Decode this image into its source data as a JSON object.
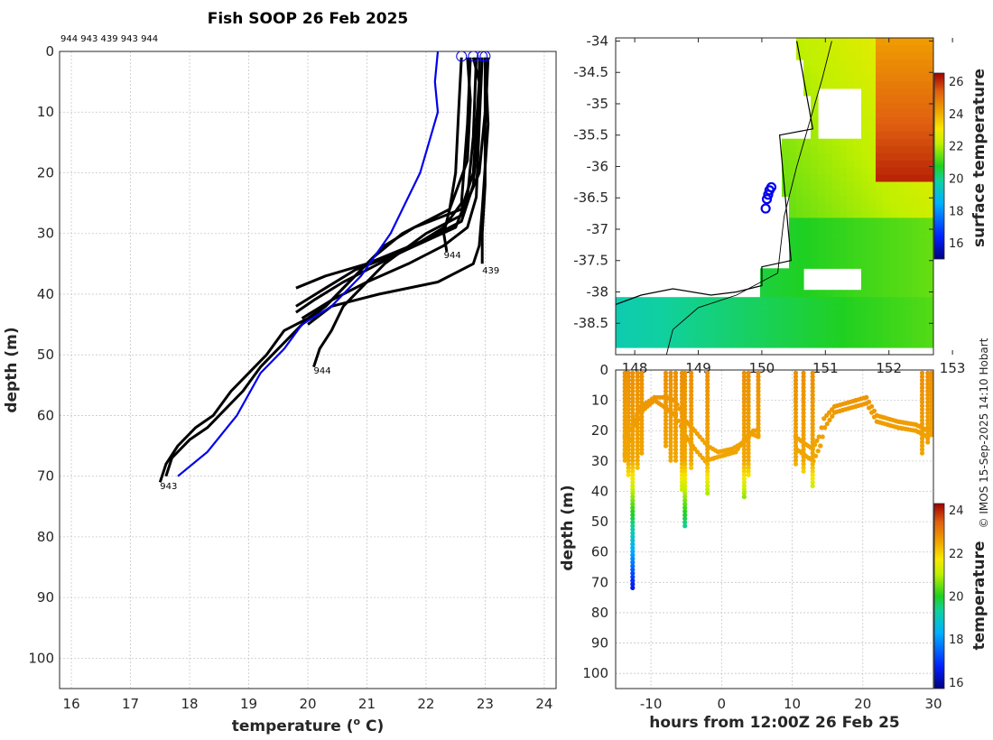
{
  "chart_data": [
    {
      "type": "line",
      "title": "Fish SOOP 26 Feb 2025",
      "profile_ids_header": "944 943 439 943 944",
      "xlabel": "temperature (",
      "xlabel_sup": "o",
      "xlabel_unit": " C)",
      "ylabel": "depth (m)",
      "xlim": [
        15.8,
        24.2
      ],
      "ylim": [
        105,
        0
      ],
      "xticks": [
        16,
        17,
        18,
        19,
        20,
        21,
        22,
        23,
        24
      ],
      "yticks": [
        0,
        10,
        20,
        30,
        40,
        50,
        60,
        70,
        80,
        90,
        100
      ],
      "grid": true,
      "reference_profile": {
        "color": "#0000ee",
        "points": [
          [
            22.2,
            0
          ],
          [
            22.15,
            5
          ],
          [
            22.2,
            10
          ],
          [
            21.9,
            20
          ],
          [
            21.4,
            30
          ],
          [
            20.9,
            37
          ],
          [
            20.4,
            42
          ],
          [
            19.9,
            45
          ],
          [
            19.6,
            49
          ],
          [
            19.2,
            53
          ],
          [
            18.8,
            60
          ],
          [
            18.3,
            66
          ],
          [
            17.8,
            70
          ]
        ]
      },
      "profiles": [
        {
          "label": "943",
          "label_at": [
            17.5,
            71.5
          ],
          "points": [
            [
              22.8,
              1
            ],
            [
              22.9,
              5
            ],
            [
              22.85,
              12
            ],
            [
              22.8,
              20
            ],
            [
              22.6,
              26
            ],
            [
              21.8,
              29
            ],
            [
              21.3,
              32
            ],
            [
              20.9,
              36
            ],
            [
              20.6,
              39
            ],
            [
              20.3,
              42
            ],
            [
              20.0,
              44
            ],
            [
              19.6,
              46
            ],
            [
              19.3,
              50
            ],
            [
              19.0,
              53
            ],
            [
              18.7,
              56
            ],
            [
              18.4,
              60
            ],
            [
              18.1,
              62
            ],
            [
              17.8,
              65
            ],
            [
              17.6,
              68
            ],
            [
              17.5,
              71
            ]
          ]
        },
        {
          "label": "",
          "label_at": null,
          "points": [
            [
              22.7,
              1
            ],
            [
              22.75,
              8
            ],
            [
              22.7,
              18
            ],
            [
              22.4,
              26
            ],
            [
              21.6,
              30
            ],
            [
              21.1,
              34
            ],
            [
              20.7,
              38
            ],
            [
              20.3,
              42
            ],
            [
              19.9,
              45
            ],
            [
              19.6,
              48
            ],
            [
              19.2,
              52
            ],
            [
              18.9,
              56
            ],
            [
              18.6,
              59
            ],
            [
              18.3,
              62
            ],
            [
              18.0,
              64
            ],
            [
              17.7,
              67
            ],
            [
              17.6,
              70
            ]
          ]
        },
        {
          "label": "944",
          "label_at": [
            20.1,
            52.5
          ],
          "points": [
            [
              23.0,
              1
            ],
            [
              23.0,
              10
            ],
            [
              22.9,
              20
            ],
            [
              22.6,
              27
            ],
            [
              22.0,
              30
            ],
            [
              21.3,
              35
            ],
            [
              20.9,
              39
            ],
            [
              20.6,
              42
            ],
            [
              20.4,
              46
            ],
            [
              20.2,
              49
            ],
            [
              20.1,
              52
            ]
          ]
        },
        {
          "label": "944",
          "label_at": [
            22.3,
            33.5
          ],
          "points": [
            [
              22.6,
              1
            ],
            [
              22.55,
              10
            ],
            [
              22.5,
              20
            ],
            [
              22.4,
              26
            ],
            [
              22.3,
              30
            ],
            [
              22.35,
              33
            ]
          ]
        },
        {
          "label": "439",
          "label_at": [
            22.95,
            36
          ],
          "points": [
            [
              23.05,
              1
            ],
            [
              23.0,
              12
            ],
            [
              23.0,
              22
            ],
            [
              22.95,
              30
            ],
            [
              22.95,
              35
            ]
          ]
        },
        {
          "label": "",
          "label_at": null,
          "points": [
            [
              22.9,
              1
            ],
            [
              22.9,
              10
            ],
            [
              22.8,
              22
            ],
            [
              22.6,
              28
            ],
            [
              22.0,
              31
            ],
            [
              21.0,
              35
            ],
            [
              20.3,
              37
            ],
            [
              19.8,
              39
            ]
          ]
        },
        {
          "label": "",
          "label_at": null,
          "points": [
            [
              22.85,
              1
            ],
            [
              22.8,
              14
            ],
            [
              22.7,
              24
            ],
            [
              22.5,
              29
            ],
            [
              21.6,
              33
            ],
            [
              20.8,
              36
            ],
            [
              20.3,
              39
            ],
            [
              19.8,
              42
            ]
          ]
        },
        {
          "label": "",
          "label_at": null,
          "points": [
            [
              22.95,
              1
            ],
            [
              22.9,
              12
            ],
            [
              22.85,
              24
            ],
            [
              22.7,
              29
            ],
            [
              22.3,
              32
            ],
            [
              21.7,
              35
            ],
            [
              21.0,
              38
            ],
            [
              20.4,
              41
            ],
            [
              19.9,
              44
            ]
          ]
        },
        {
          "label": "",
          "label_at": null,
          "points": [
            [
              22.75,
              1
            ],
            [
              22.7,
              12
            ],
            [
              22.6,
              25
            ],
            [
              22.3,
              29
            ],
            [
              21.8,
              32
            ],
            [
              21.2,
              35
            ],
            [
              20.6,
              38
            ],
            [
              20.1,
              41
            ],
            [
              19.8,
              43
            ]
          ]
        },
        {
          "label": "",
          "label_at": null,
          "points": [
            [
              23.0,
              1
            ],
            [
              23.05,
              12
            ],
            [
              22.95,
              26
            ],
            [
              22.9,
              32
            ],
            [
              22.8,
              35
            ],
            [
              22.2,
              38
            ],
            [
              21.2,
              40
            ],
            [
              20.4,
              42
            ],
            [
              20.0,
              45
            ]
          ]
        }
      ]
    },
    {
      "type": "heatmap",
      "xticks": [
        148,
        149,
        150,
        151,
        152,
        153
      ],
      "xtick_labels": [
        "148",
        "149",
        "150",
        "151",
        "152",
        "153"
      ],
      "yticks": [
        -34,
        -34.5,
        -35,
        -35.5,
        -36,
        -36.5,
        -37,
        -37.5,
        -38,
        -38.5
      ],
      "ytick_labels": [
        "-34",
        "-34.5",
        "-35",
        "-35.5",
        "-36",
        "-36.5",
        "-37",
        "-37.5",
        "-38",
        "-38.5"
      ],
      "xlim": [
        147.7,
        152.7
      ],
      "ylim": [
        -39.0,
        -33.95
      ],
      "colorbar": {
        "label": "surface temperature",
        "range": [
          15,
          26.5
        ],
        "ticks": [
          16,
          18,
          20,
          22,
          24,
          26
        ]
      },
      "station_markers": [
        [
          150.15,
          -36.33
        ],
        [
          150.12,
          -36.38
        ],
        [
          150.1,
          -36.45
        ],
        [
          150.08,
          -36.52
        ],
        [
          150.06,
          -36.67
        ]
      ],
      "marker_color": "#0000ee"
    },
    {
      "type": "scatter",
      "xlabel": "hours from 12:00Z 26 Feb 25",
      "ylabel": "depth (m)",
      "xlim": [
        -15,
        30
      ],
      "ylim": [
        105,
        0
      ],
      "xticks": [
        -10,
        0,
        10,
        20,
        30
      ],
      "yticks": [
        0,
        10,
        20,
        30,
        40,
        50,
        60,
        70,
        80,
        90,
        100
      ],
      "colorbar": {
        "label": "temperature",
        "range": [
          15.7,
          24.3
        ],
        "ticks": [
          16,
          18,
          20,
          22,
          24
        ]
      },
      "casts": [
        {
          "x": -13.7,
          "max_depth": 30
        },
        {
          "x": -13.2,
          "max_depth": 35
        },
        {
          "x": -12.6,
          "max_depth": 72
        },
        {
          "x": -11.9,
          "max_depth": 33
        },
        {
          "x": -11.3,
          "max_depth": 28
        },
        {
          "x": -7.9,
          "max_depth": 26
        },
        {
          "x": -7.2,
          "max_depth": 30
        },
        {
          "x": -6.5,
          "max_depth": 30
        },
        {
          "x": -5.6,
          "max_depth": 40
        },
        {
          "x": -5.2,
          "max_depth": 52
        },
        {
          "x": -4.3,
          "max_depth": 33
        },
        {
          "x": -2.0,
          "max_depth": 41
        },
        {
          "x": 3.2,
          "max_depth": 43
        },
        {
          "x": 3.8,
          "max_depth": 35
        },
        {
          "x": 5.2,
          "max_depth": 22
        },
        {
          "x": 10.5,
          "max_depth": 32
        },
        {
          "x": 11.6,
          "max_depth": 34
        },
        {
          "x": 12.9,
          "max_depth": 39
        },
        {
          "x": 28.4,
          "max_depth": 28
        },
        {
          "x": 29.2,
          "max_depth": 24
        },
        {
          "x": 29.7,
          "max_depth": 22
        }
      ],
      "tracks": [
        [
          [
            -13.7,
            28
          ],
          [
            -12.6,
            20
          ],
          [
            -11.5,
            14
          ],
          [
            -9.5,
            10
          ],
          [
            -8.2,
            12
          ],
          [
            -6.5,
            15
          ],
          [
            -5.0,
            22
          ],
          [
            -3.8,
            26
          ],
          [
            -2.3,
            30
          ],
          [
            -1.0,
            29
          ],
          [
            0.5,
            28
          ],
          [
            2.0,
            27
          ],
          [
            3.2,
            23
          ],
          [
            4.5,
            20
          ],
          [
            5.2,
            20
          ]
        ],
        [
          [
            -13.7,
            22
          ],
          [
            -12.6,
            18
          ],
          [
            -11.4,
            12
          ],
          [
            -9.5,
            9
          ],
          [
            -8.0,
            9
          ],
          [
            -6.6,
            10
          ],
          [
            -5.0,
            17
          ],
          [
            -3.8,
            20
          ],
          [
            -2.0,
            25
          ],
          [
            -0.5,
            27
          ],
          [
            1.5,
            26
          ],
          [
            3.0,
            24
          ],
          [
            4.2,
            21
          ],
          [
            5.2,
            22
          ]
        ],
        [
          [
            10.5,
            22
          ],
          [
            11.6,
            24
          ],
          [
            12.9,
            26
          ],
          [
            13.8,
            22
          ],
          [
            14.5,
            16
          ],
          [
            16.0,
            12
          ],
          [
            19.0,
            10
          ],
          [
            20.5,
            9
          ],
          [
            22.0,
            15
          ],
          [
            25.0,
            17
          ],
          [
            27.5,
            18
          ],
          [
            29.2,
            20
          ],
          [
            29.7,
            19
          ]
        ],
        [
          [
            10.6,
            26
          ],
          [
            11.7,
            28
          ],
          [
            13.0,
            30
          ],
          [
            14.0,
            25
          ],
          [
            14.6,
            19
          ],
          [
            16.0,
            14
          ],
          [
            19.0,
            12
          ],
          [
            20.5,
            11
          ],
          [
            22.0,
            17
          ],
          [
            25.0,
            19
          ],
          [
            27.5,
            20
          ],
          [
            29.2,
            22
          ]
        ]
      ]
    }
  ],
  "credit": "© IMOS 15-Sep-2025 14:10 Hobart"
}
